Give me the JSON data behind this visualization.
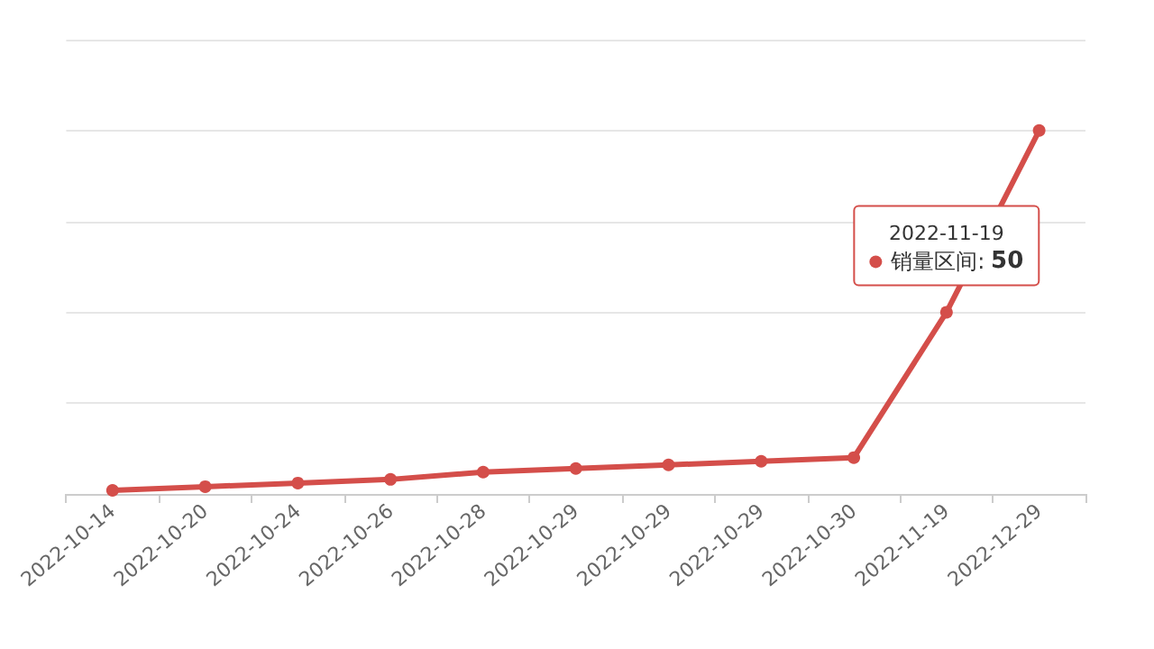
{
  "chart_data": {
    "type": "line",
    "categories": [
      "2022-10-14",
      "2022-10-20",
      "2022-10-24",
      "2022-10-26",
      "2022-10-28",
      "2022-10-29",
      "2022-10-29",
      "2022-10-29",
      "2022-10-30",
      "2022-11-19",
      "2022-12-29"
    ],
    "series": [
      {
        "name": "销量区间:",
        "color": "#d44e4a",
        "values": [
          1,
          2,
          3,
          4,
          6,
          7,
          8,
          9,
          10,
          50,
          100
        ],
        "value_labels": [
          null,
          null,
          null,
          null,
          null,
          null,
          null,
          null,
          null,
          "50",
          null
        ]
      }
    ],
    "ylim": [
      0,
      125
    ],
    "yticks": [
      {
        "value": 0,
        "label": null
      },
      {
        "value": 25,
        "label": null
      },
      {
        "value": 50,
        "label": null
      },
      {
        "value": 75,
        "label": null
      },
      {
        "value": 100,
        "label": null
      },
      {
        "value": 125,
        "label": null
      }
    ],
    "grid": "y",
    "marker": "circle",
    "line_style": "solid",
    "legend": "right"
  }
}
